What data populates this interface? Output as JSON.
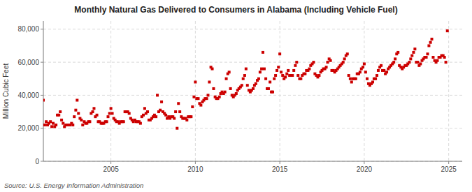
{
  "chart_data": {
    "type": "scatter",
    "title": "Monthly Natural Gas Delivered to Consumers in Alabama (Including Vehicle Fuel)",
    "y_label": "Million Cubic Feet",
    "annotations": [
      "Source: U.S. Energy Information Administration"
    ],
    "color": "#cc0000",
    "marker": "square",
    "grid": true,
    "xlim": [
      2001.0,
      2025.8
    ],
    "ylim": [
      0,
      85000
    ],
    "xticks": [
      2005,
      2010,
      2015,
      2020,
      2025
    ],
    "yticks": [
      0,
      {
        "value": 20000,
        "label": "20,000"
      },
      {
        "value": 40000,
        "label": "40,000"
      },
      {
        "value": 60000,
        "label": "60,000"
      },
      {
        "value": 80000,
        "label": "80,000"
      }
    ],
    "x": [
      2001.0,
      2001.08,
      2001.17,
      2001.25,
      2001.33,
      2001.42,
      2001.5,
      2001.58,
      2001.67,
      2001.75,
      2001.83,
      2001.92,
      2002.0,
      2002.08,
      2002.17,
      2002.25,
      2002.33,
      2002.42,
      2002.5,
      2002.58,
      2002.67,
      2002.75,
      2002.83,
      2002.92,
      2003.0,
      2003.08,
      2003.17,
      2003.25,
      2003.33,
      2003.42,
      2003.5,
      2003.58,
      2003.67,
      2003.75,
      2003.83,
      2003.92,
      2004.0,
      2004.08,
      2004.17,
      2004.25,
      2004.33,
      2004.42,
      2004.5,
      2004.58,
      2004.67,
      2004.75,
      2004.83,
      2004.92,
      2005.0,
      2005.08,
      2005.17,
      2005.25,
      2005.33,
      2005.42,
      2005.5,
      2005.58,
      2005.67,
      2005.75,
      2005.83,
      2005.92,
      2006.0,
      2006.08,
      2006.17,
      2006.25,
      2006.33,
      2006.42,
      2006.5,
      2006.58,
      2006.67,
      2006.75,
      2006.83,
      2006.92,
      2007.0,
      2007.08,
      2007.17,
      2007.25,
      2007.33,
      2007.42,
      2007.5,
      2007.58,
      2007.67,
      2007.75,
      2007.83,
      2007.92,
      2008.0,
      2008.08,
      2008.17,
      2008.25,
      2008.33,
      2008.42,
      2008.5,
      2008.58,
      2008.67,
      2008.75,
      2008.83,
      2008.92,
      2009.0,
      2009.08,
      2009.17,
      2009.25,
      2009.33,
      2009.42,
      2009.5,
      2009.58,
      2009.67,
      2009.75,
      2009.83,
      2009.92,
      2010.0,
      2010.08,
      2010.17,
      2010.25,
      2010.33,
      2010.42,
      2010.5,
      2010.58,
      2010.67,
      2010.75,
      2010.83,
      2010.92,
      2011.0,
      2011.08,
      2011.17,
      2011.25,
      2011.33,
      2011.42,
      2011.5,
      2011.58,
      2011.67,
      2011.75,
      2011.83,
      2011.92,
      2012.0,
      2012.08,
      2012.17,
      2012.25,
      2012.33,
      2012.42,
      2012.5,
      2012.58,
      2012.67,
      2012.75,
      2012.83,
      2012.92,
      2013.0,
      2013.08,
      2013.17,
      2013.25,
      2013.33,
      2013.42,
      2013.5,
      2013.58,
      2013.67,
      2013.75,
      2013.83,
      2013.92,
      2014.0,
      2014.08,
      2014.17,
      2014.25,
      2014.33,
      2014.42,
      2014.5,
      2014.58,
      2014.67,
      2014.75,
      2014.83,
      2014.92,
      2015.0,
      2015.08,
      2015.17,
      2015.25,
      2015.33,
      2015.42,
      2015.5,
      2015.58,
      2015.67,
      2015.75,
      2015.83,
      2015.92,
      2016.0,
      2016.08,
      2016.17,
      2016.25,
      2016.33,
      2016.42,
      2016.5,
      2016.58,
      2016.67,
      2016.75,
      2016.83,
      2016.92,
      2017.0,
      2017.08,
      2017.17,
      2017.25,
      2017.33,
      2017.42,
      2017.5,
      2017.58,
      2017.67,
      2017.75,
      2017.83,
      2017.92,
      2018.0,
      2018.08,
      2018.17,
      2018.25,
      2018.33,
      2018.42,
      2018.5,
      2018.58,
      2018.67,
      2018.75,
      2018.83,
      2018.92,
      2019.0,
      2019.08,
      2019.17,
      2019.25,
      2019.33,
      2019.42,
      2019.5,
      2019.58,
      2019.67,
      2019.75,
      2019.83,
      2019.92,
      2020.0,
      2020.08,
      2020.17,
      2020.25,
      2020.33,
      2020.42,
      2020.5,
      2020.58,
      2020.67,
      2020.75,
      2020.83,
      2020.92,
      2021.0,
      2021.08,
      2021.17,
      2021.25,
      2021.33,
      2021.42,
      2021.5,
      2021.58,
      2021.67,
      2021.75,
      2021.83,
      2021.92,
      2022.0,
      2022.08,
      2022.17,
      2022.25,
      2022.33,
      2022.42,
      2022.5,
      2022.58,
      2022.67,
      2022.75,
      2022.83,
      2022.92,
      2023.0,
      2023.08,
      2023.17,
      2023.25,
      2023.33,
      2023.42,
      2023.5,
      2023.58,
      2023.67,
      2023.75,
      2023.83,
      2023.92,
      2024.0,
      2024.08,
      2024.17,
      2024.25,
      2024.33,
      2024.42,
      2024.5,
      2024.58,
      2024.67,
      2024.75,
      2024.83,
      2024.92
    ],
    "values": [
      37000,
      22000,
      24000,
      22000,
      23000,
      24000,
      21000,
      23000,
      21000,
      22000,
      28000,
      28000,
      30000,
      25000,
      23000,
      21000,
      22000,
      22000,
      22000,
      22000,
      23000,
      22000,
      27000,
      31000,
      37000,
      29000,
      26000,
      25000,
      22000,
      24000,
      23000,
      23000,
      24000,
      24000,
      29000,
      30000,
      32000,
      27000,
      28000,
      24000,
      24000,
      23000,
      23000,
      23000,
      24000,
      24000,
      27000,
      29000,
      32000,
      29000,
      26000,
      25000,
      24000,
      24000,
      23000,
      24000,
      24000,
      24000,
      30000,
      30000,
      30000,
      29000,
      26000,
      25000,
      24000,
      25000,
      24000,
      24000,
      24000,
      23000,
      27000,
      28000,
      32000,
      29000,
      30000,
      25000,
      25000,
      26000,
      27000,
      28000,
      27000,
      40000,
      30000,
      31000,
      36000,
      30000,
      29000,
      28000,
      26000,
      27000,
      26000,
      27000,
      27000,
      26000,
      30000,
      20000,
      35000,
      30000,
      27000,
      26000,
      26000,
      26000,
      25000,
      27000,
      27000,
      27000,
      33000,
      39000,
      48000,
      38000,
      38000,
      35000,
      34000,
      36000,
      37000,
      38000,
      38000,
      40000,
      48000,
      57000,
      56000,
      44000,
      39000,
      38000,
      38000,
      39000,
      41000,
      42000,
      41000,
      42000,
      50000,
      53000,
      54000,
      44000,
      40000,
      39000,
      40000,
      41000,
      43000,
      44000,
      45000,
      46000,
      50000,
      52000,
      56000,
      46000,
      43000,
      42000,
      43000,
      44000,
      46000,
      47000,
      49000,
      50000,
      54000,
      56000,
      66000,
      56000,
      50000,
      44000,
      44000,
      48000,
      42000,
      42000,
      50000,
      52000,
      55000,
      57000,
      65000,
      54000,
      52000,
      50000,
      51000,
      53000,
      55000,
      52000,
      52000,
      52000,
      55000,
      58000,
      60000,
      52000,
      50000,
      50000,
      52000,
      53000,
      53000,
      55000,
      55000,
      56000,
      58000,
      59000,
      60000,
      53000,
      52000,
      51000,
      52000,
      54000,
      55000,
      56000,
      56000,
      57000,
      60000,
      62000,
      61000,
      55000,
      55000,
      54000,
      55000,
      56000,
      57000,
      58000,
      59000,
      60000,
      62000,
      64000,
      65000,
      52000,
      50000,
      48000,
      50000,
      50000,
      50000,
      53000,
      53000,
      54000,
      56000,
      57000,
      59000,
      54000,
      50000,
      47000,
      46000,
      47000,
      48000,
      50000,
      50000,
      52000,
      55000,
      57000,
      58000,
      55000,
      55000,
      53000,
      54000,
      56000,
      57000,
      58000,
      59000,
      60000,
      62000,
      65000,
      66000,
      58000,
      57000,
      56000,
      57000,
      58000,
      58000,
      59000,
      60000,
      62000,
      64000,
      66000,
      68000,
      60000,
      60000,
      58000,
      59000,
      61000,
      62000,
      63000,
      63000,
      65000,
      70000,
      72000,
      74000,
      63000,
      61000,
      60000,
      61000,
      63000,
      63000,
      64000,
      64000,
      63000,
      60000,
      79000
    ]
  }
}
